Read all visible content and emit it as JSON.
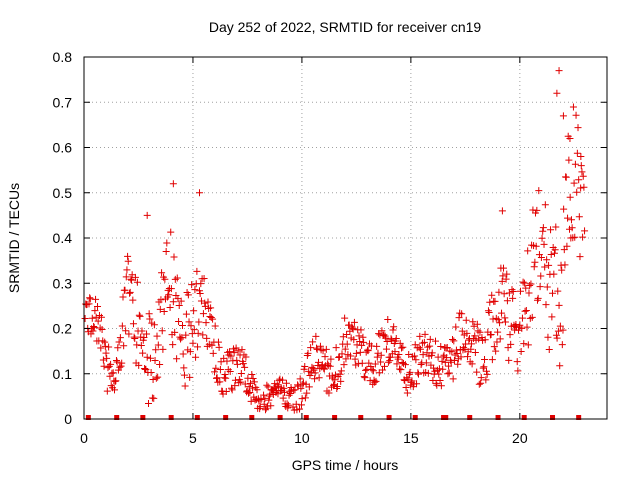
{
  "chart_data": {
    "type": "scatter",
    "title": "Day 252 of 2022, SRMTID for receiver cn19",
    "xlabel": "GPS time / hours",
    "ylabel": "SRMTID / TECUs",
    "xlim": [
      0,
      24
    ],
    "ylim": [
      0,
      0.8
    ],
    "x_ticks": [
      0,
      5,
      10,
      15,
      20
    ],
    "y_ticks": [
      0,
      0.1,
      0.2,
      0.3,
      0.4,
      0.5,
      0.6,
      0.7,
      0.8
    ],
    "x_tick_labels": [
      "0",
      "5",
      "10",
      "15",
      "20"
    ],
    "y_tick_labels": [
      "0",
      "0.1",
      "0.2",
      "0.3",
      "0.4",
      "0.5",
      "0.6",
      "0.7",
      "0.8"
    ],
    "grid": true,
    "marker": "+",
    "marker_color": "#e00000",
    "zero_markers_x": [
      0.2,
      1.5,
      2.7,
      4.0,
      5.2,
      6.5,
      7.7,
      9.0,
      10.2,
      11.5,
      12.7,
      14.0,
      15.2,
      16.5,
      16.6,
      17.7,
      19.0,
      20.2,
      21.5,
      22.7
    ],
    "envelope": {
      "x": [
        0.0,
        0.5,
        1.0,
        1.5,
        2.0,
        2.5,
        3.0,
        3.5,
        4.0,
        4.5,
        5.0,
        5.5,
        6.0,
        6.5,
        7.0,
        7.5,
        8.0,
        8.5,
        9.0,
        9.5,
        10.0,
        10.5,
        11.0,
        11.5,
        12.0,
        12.5,
        13.0,
        13.5,
        14.0,
        14.5,
        15.0,
        15.5,
        16.0,
        16.5,
        17.0,
        17.5,
        18.0,
        18.5,
        19.0,
        19.5,
        20.0,
        20.5,
        21.0,
        21.5,
        22.0,
        22.5,
        23.0
      ],
      "center": [
        0.22,
        0.2,
        0.15,
        0.14,
        0.22,
        0.18,
        0.2,
        0.18,
        0.25,
        0.22,
        0.25,
        0.2,
        0.16,
        0.13,
        0.1,
        0.08,
        0.06,
        0.05,
        0.05,
        0.05,
        0.08,
        0.1,
        0.11,
        0.14,
        0.16,
        0.14,
        0.15,
        0.15,
        0.14,
        0.13,
        0.13,
        0.12,
        0.12,
        0.14,
        0.15,
        0.16,
        0.18,
        0.2,
        0.19,
        0.22,
        0.24,
        0.28,
        0.3,
        0.35,
        0.4,
        0.42,
        0.45
      ],
      "spread": [
        0.04,
        0.06,
        0.06,
        0.07,
        0.1,
        0.1,
        0.12,
        0.1,
        0.13,
        0.12,
        0.12,
        0.08,
        0.06,
        0.06,
        0.05,
        0.04,
        0.03,
        0.03,
        0.03,
        0.03,
        0.04,
        0.05,
        0.05,
        0.06,
        0.06,
        0.05,
        0.05,
        0.05,
        0.05,
        0.05,
        0.05,
        0.05,
        0.05,
        0.05,
        0.06,
        0.06,
        0.07,
        0.08,
        0.08,
        0.1,
        0.1,
        0.12,
        0.14,
        0.17,
        0.2,
        0.17,
        0.12
      ]
    },
    "peaks": [
      {
        "x": 4.1,
        "y": 0.52
      },
      {
        "x": 5.3,
        "y": 0.5
      },
      {
        "x": 2.9,
        "y": 0.45
      },
      {
        "x": 19.2,
        "y": 0.46
      },
      {
        "x": 21.8,
        "y": 0.77
      },
      {
        "x": 21.7,
        "y": 0.72
      },
      {
        "x": 22.3,
        "y": 0.62
      },
      {
        "x": 22.0,
        "y": 0.67
      },
      {
        "x": 22.8,
        "y": 0.58
      }
    ]
  }
}
